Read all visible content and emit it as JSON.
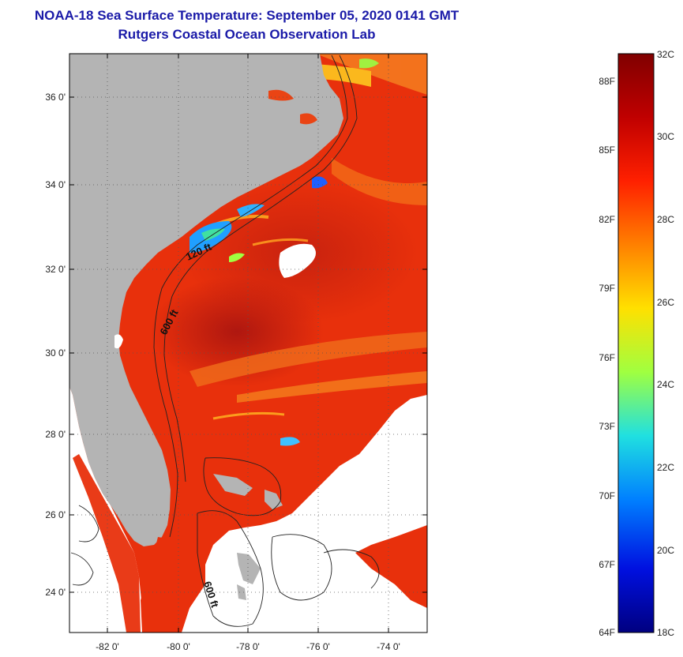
{
  "header": {
    "title": "NOAA-18 Sea Surface Temperature:  September 05, 2020 0141 GMT",
    "subtitle": "Rutgers Coastal Ocean Observation Lab"
  },
  "map": {
    "lat_labels": [
      "36 0'",
      "34 0'",
      "32 0'",
      "30 0'",
      "28 0'",
      "26 0'",
      "24 0'"
    ],
    "lon_labels": [
      "-82 0'",
      "-80 0'",
      "-78 0'",
      "-76 0'",
      "-74 0'"
    ],
    "contour_labels": [
      "120 ft",
      "600 ft",
      "600 ft"
    ],
    "colors": {
      "land": "#b4b4b4",
      "no_data": "#ffffff",
      "sea_warm": "#e8300c",
      "sea_hot": "#c81a10",
      "sea_cool": "#f26a18"
    }
  },
  "colorbar": {
    "colors": [
      "#800000",
      "#c00000",
      "#ff2000",
      "#ff8000",
      "#ffe000",
      "#a0ff40",
      "#20e0e0",
      "#0080ff",
      "#0010e0",
      "#000080"
    ],
    "celsius": [
      "32C",
      "30C",
      "28C",
      "26C",
      "24C",
      "22C",
      "20C",
      "18C"
    ],
    "fahrenheit": [
      "88F",
      "85F",
      "82F",
      "79F",
      "76F",
      "73F",
      "70F",
      "67F",
      "64F"
    ]
  }
}
